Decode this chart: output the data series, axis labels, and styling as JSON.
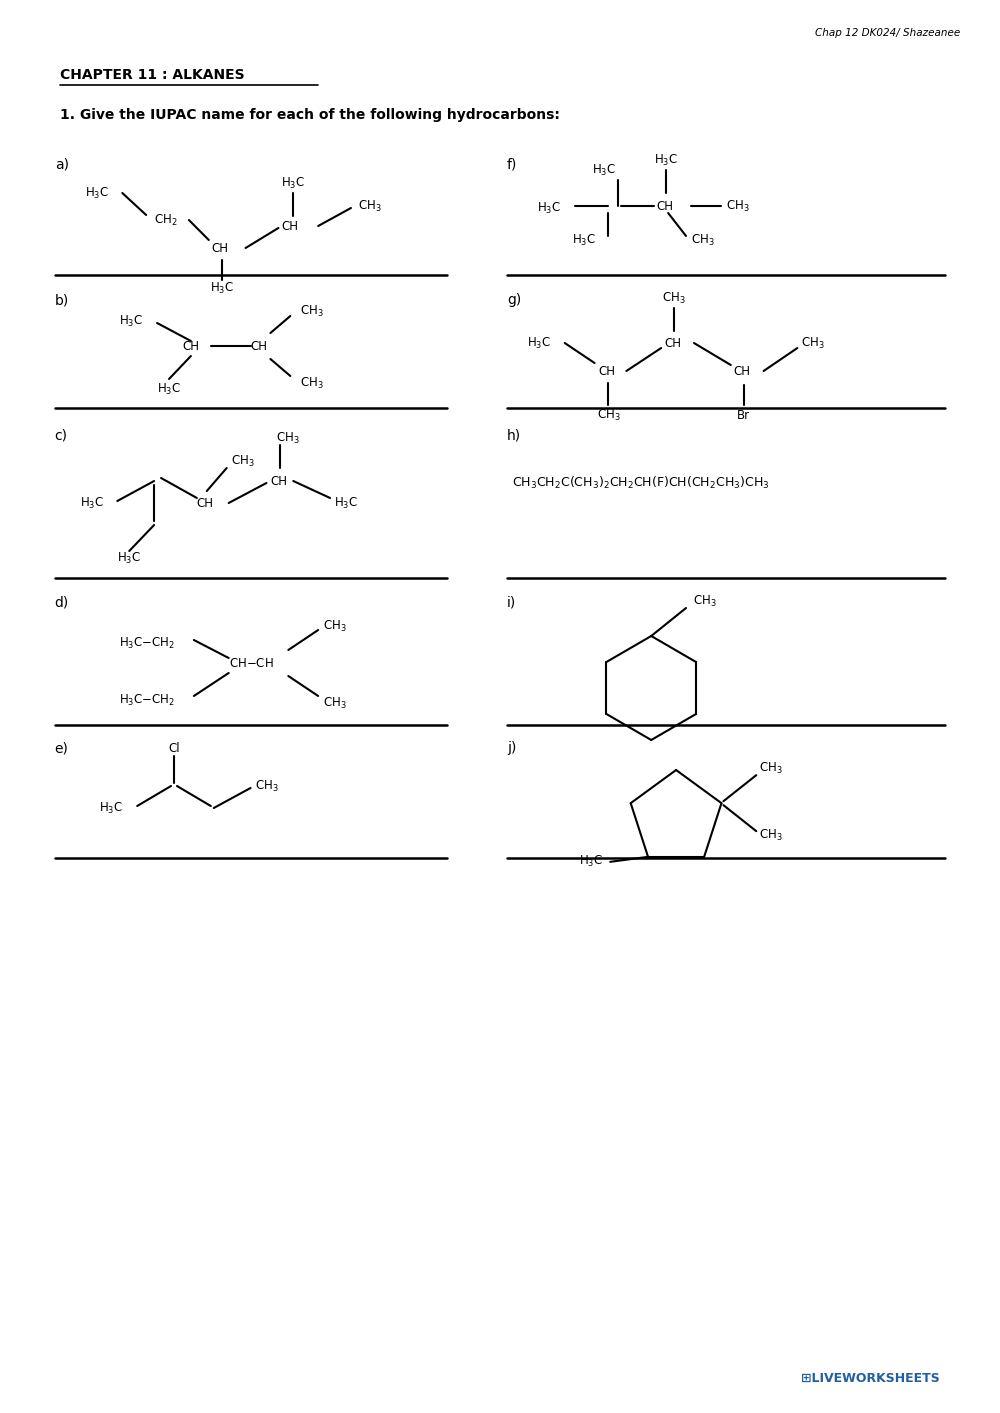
{
  "title": "CHAPTER 11 : ALKANES",
  "subtitle": "1. Give the IUPAC name for each of the following hydrocarbons:",
  "header_note": "Chap 12 DK024/ Shazeanee",
  "bg_color": "#ffffff",
  "text_color": "#000000",
  "labels": [
    "a)",
    "b)",
    "c)",
    "d)",
    "e)",
    "f)",
    "g)",
    "h)",
    "i)",
    "j)"
  ]
}
